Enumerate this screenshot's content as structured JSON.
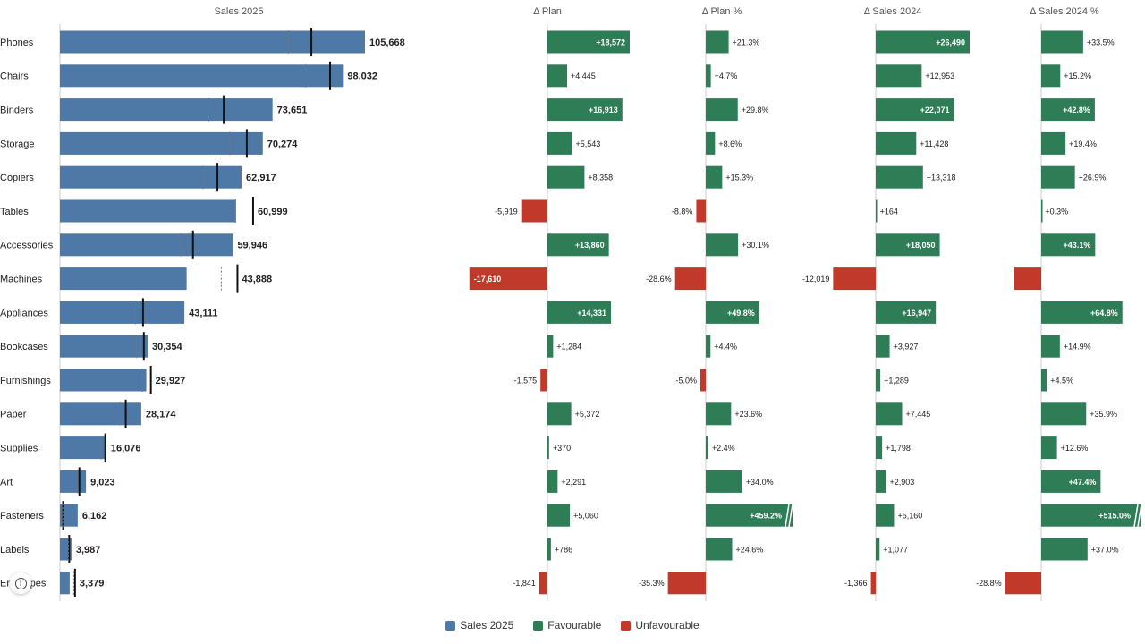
{
  "chart_data": {
    "type": "bar",
    "categories": [
      "Phones",
      "Chairs",
      "Binders",
      "Storage",
      "Copiers",
      "Tables",
      "Accessories",
      "Machines",
      "Appliances",
      "Bookcases",
      "Furnishings",
      "Paper",
      "Supplies",
      "Art",
      "Fasteners",
      "Labels",
      "Envelopes"
    ],
    "sales_2025": {
      "header": "Sales 2025",
      "values": [
        105668,
        98032,
        73651,
        70274,
        62917,
        60999,
        59946,
        43888,
        43111,
        30354,
        29927,
        28174,
        16076,
        9023,
        6162,
        3987,
        3379
      ],
      "labels": [
        "105,668",
        "98,032",
        "73,651",
        "70,274",
        "62,917",
        "60,999",
        "59,946",
        "43,888",
        "43,111",
        "30,354",
        "29,927",
        "28,174",
        "16,076",
        "9,023",
        "6,162",
        "3,987",
        "3,379"
      ],
      "plan": [
        87096,
        93587,
        56738,
        64731,
        54559,
        66918,
        46086,
        61498,
        28780,
        29070,
        31502,
        22802,
        15706,
        6732,
        1102,
        3201,
        5220
      ],
      "sales_2024": [
        79178,
        85079,
        51580,
        58846,
        49599,
        60835,
        41896,
        55907,
        26164,
        26427,
        28638,
        20729,
        14278,
        6120,
        1002,
        2910,
        4745
      ]
    },
    "delta_plan": {
      "header": "Δ Plan",
      "values": [
        18572,
        4445,
        16913,
        5543,
        8358,
        -5919,
        13860,
        -17610,
        14331,
        1284,
        -1575,
        5372,
        370,
        2291,
        5060,
        786,
        -1841
      ],
      "labels": [
        "+18,572",
        "+4,445",
        "+16,913",
        "+5,543",
        "+8,358",
        "-5,919",
        "+13,860",
        "-17,610",
        "+14,331",
        "+1,284",
        "-1,575",
        "+5,372",
        "+370",
        "+2,291",
        "+5,060",
        "+786",
        "-1,841"
      ]
    },
    "delta_plan_pct": {
      "header": "Δ Plan %",
      "values": [
        21.3,
        4.7,
        29.8,
        8.6,
        15.3,
        -8.8,
        30.1,
        -28.6,
        49.8,
        4.4,
        -5.0,
        23.6,
        2.4,
        34.0,
        459.2,
        24.6,
        -35.3
      ],
      "labels": [
        "+21.3%",
        "+4.7%",
        "+29.8%",
        "+8.6%",
        "+15.3%",
        "-8.8%",
        "+30.1%",
        "-28.6%",
        "+49.8%",
        "+4.4%",
        "-5.0%",
        "+23.6%",
        "+2.4%",
        "+34.0%",
        "+459.2%",
        "+24.6%",
        "-35.3%"
      ]
    },
    "delta_sales_2024": {
      "header": "Δ Sales 2024",
      "values": [
        26490,
        12953,
        22071,
        11428,
        13318,
        164,
        18050,
        -12019,
        16947,
        3927,
        1289,
        7445,
        1798,
        2903,
        5160,
        1077,
        -1366
      ],
      "labels": [
        "+26,490",
        "+12,953",
        "+22,071",
        "+11,428",
        "+13,318",
        "+164",
        "+18,050",
        "-12,019",
        "+16,947",
        "+3,927",
        "+1,289",
        "+7,445",
        "+1,798",
        "+2,903",
        "+5,160",
        "+1,077",
        "-1,366"
      ]
    },
    "delta_sales_2024_pct": {
      "header": "Δ Sales 2024 %",
      "values": [
        33.5,
        15.2,
        42.8,
        19.4,
        26.9,
        0.3,
        43.1,
        -21.5,
        64.8,
        14.9,
        4.5,
        35.9,
        12.6,
        47.4,
        515.0,
        37.0,
        -28.8
      ],
      "labels": [
        "+33.5%",
        "+15.2%",
        "+42.8%",
        "+19.4%",
        "+26.9%",
        "+0.3%",
        "+43.1%",
        "",
        "+64.8%",
        "+14.9%",
        "+4.5%",
        "+35.9%",
        "+12.6%",
        "+47.4%",
        "+515.0%",
        "+37.0%",
        "-28.8%"
      ]
    },
    "legend": [
      "Sales 2025",
      "Favourable",
      "Unfavourable"
    ],
    "legend_placement": "bottom-center",
    "colors": {
      "sales": "#4e79a7",
      "favourable": "#2e7d57",
      "unfavourable": "#c0392b",
      "axis": "#cccccc",
      "marker": "#111111"
    }
  },
  "info_icon": "info-icon"
}
